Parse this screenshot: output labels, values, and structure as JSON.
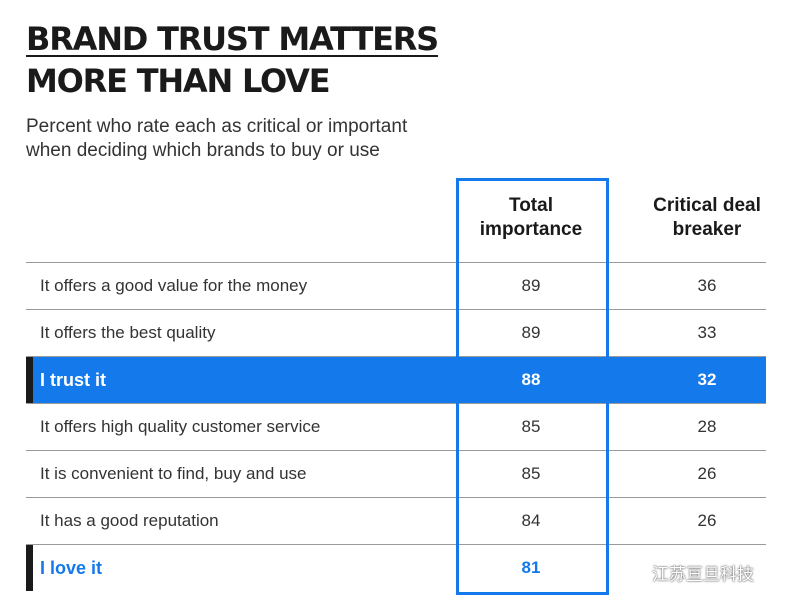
{
  "chart_data": {
    "type": "table",
    "title": [
      "BRAND TRUST MATTERS",
      "MORE THAN LOVE"
    ],
    "subtitle": [
      "Percent who rate each as critical or important",
      "when deciding which brands to buy or use"
    ],
    "columns": [
      {
        "label": [
          "Total",
          "importance"
        ]
      },
      {
        "label": [
          "Critical deal",
          "breaker"
        ]
      }
    ],
    "rows": [
      {
        "label": "It offers a good value for the money",
        "total_importance": 89,
        "critical_deal_breaker": 36,
        "style": "normal"
      },
      {
        "label": "It offers the best quality",
        "total_importance": 89,
        "critical_deal_breaker": 33,
        "style": "normal"
      },
      {
        "label": "I trust it",
        "total_importance": 88,
        "critical_deal_breaker": 32,
        "style": "highlight"
      },
      {
        "label": "It offers high quality customer service",
        "total_importance": 85,
        "critical_deal_breaker": 28,
        "style": "normal"
      },
      {
        "label": "It is convenient to find, buy and use",
        "total_importance": 85,
        "critical_deal_breaker": 26,
        "style": "normal"
      },
      {
        "label": "It has a good reputation",
        "total_importance": 84,
        "critical_deal_breaker": 26,
        "style": "normal"
      },
      {
        "label": "I love it",
        "total_importance": 81,
        "critical_deal_breaker": null,
        "style": "accent"
      }
    ],
    "highlighted_column": "total_importance",
    "colors": {
      "accent": "#1479ea",
      "text": "#333333",
      "rule": "#9a9a9a",
      "marker": "#1a1a1a"
    }
  },
  "watermark": {
    "text": "江苏亘旦科技",
    "icon": "wechat-icon"
  }
}
